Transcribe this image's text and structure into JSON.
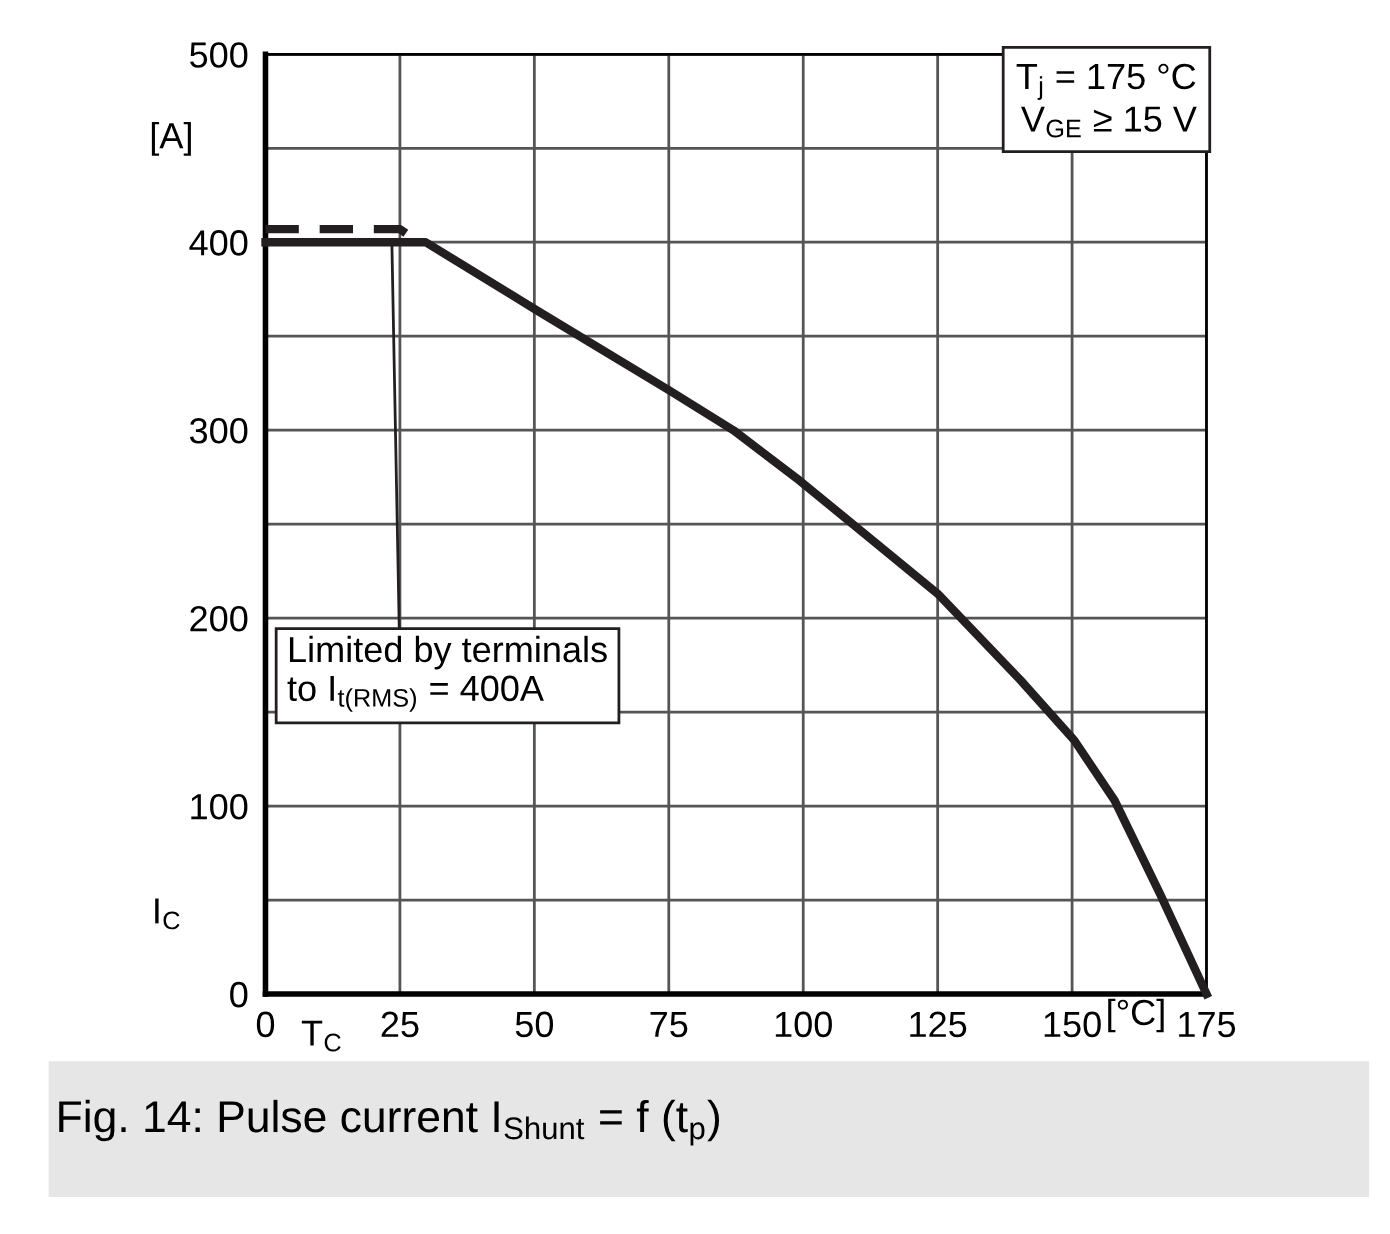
{
  "chart_data": {
    "type": "line",
    "title": "Fig. 14: Pulse current I$_{Shunt}$ = f (t$_{p}$)",
    "xlabel": "T$_{C}$",
    "ylabel": "I$_{C}$",
    "xlim": [
      0,
      175
    ],
    "ylim": [
      0,
      500
    ],
    "xticks": [
      0,
      25,
      50,
      75,
      100,
      125,
      150,
      175
    ],
    "yticks": [
      0,
      {
        "value": 50,
        "label": null
      },
      100,
      {
        "value": 150,
        "label": null
      },
      200,
      {
        "value": 250,
        "label": null
      },
      300,
      {
        "value": 350,
        "label": null
      },
      400,
      {
        "value": 450,
        "label": null
      },
      500
    ],
    "grid": true,
    "legend": false,
    "marker": "none",
    "series": [
      {
        "color": "#231f20",
        "line_style": "solid",
        "x": [
          0,
          29.8,
          50.3,
          75.2,
          87,
          99.4,
          125,
          140.4,
          150.4,
          157.9,
          166.4,
          175
        ],
        "values": [
          400,
          400,
          364,
          321,
          300,
          273,
          213,
          167,
          135,
          103,
          53,
          0
        ]
      },
      {
        "color": "#231f20",
        "line_style": "dashed",
        "x": [
          0,
          25,
          27
        ],
        "values": [
          407,
          407,
          403
        ]
      }
    ],
    "annotations": [
      "[A]",
      "[°C]",
      "T$_{j}$ = 175 °C\nV$_{GE}$ ≥ 15 V",
      {
        "text": "Limited by terminals\nto I$_{t(RMS)}$ = 400A",
        "x": 23.5,
        "y": 400
      }
    ]
  }
}
